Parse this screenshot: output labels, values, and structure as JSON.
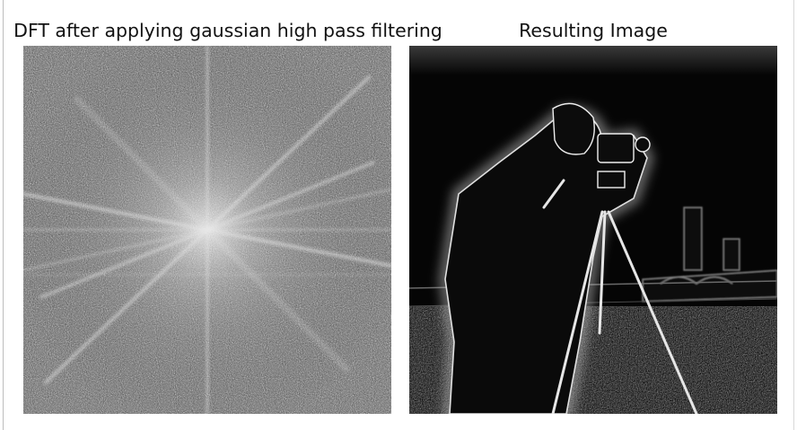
{
  "figure": {
    "panels": [
      {
        "title": "DFT after applying gaussian high pass filtering",
        "image": "frequency-spectrum"
      },
      {
        "title": "Resulting Image",
        "image": "edge-filtered-photo"
      }
    ]
  }
}
